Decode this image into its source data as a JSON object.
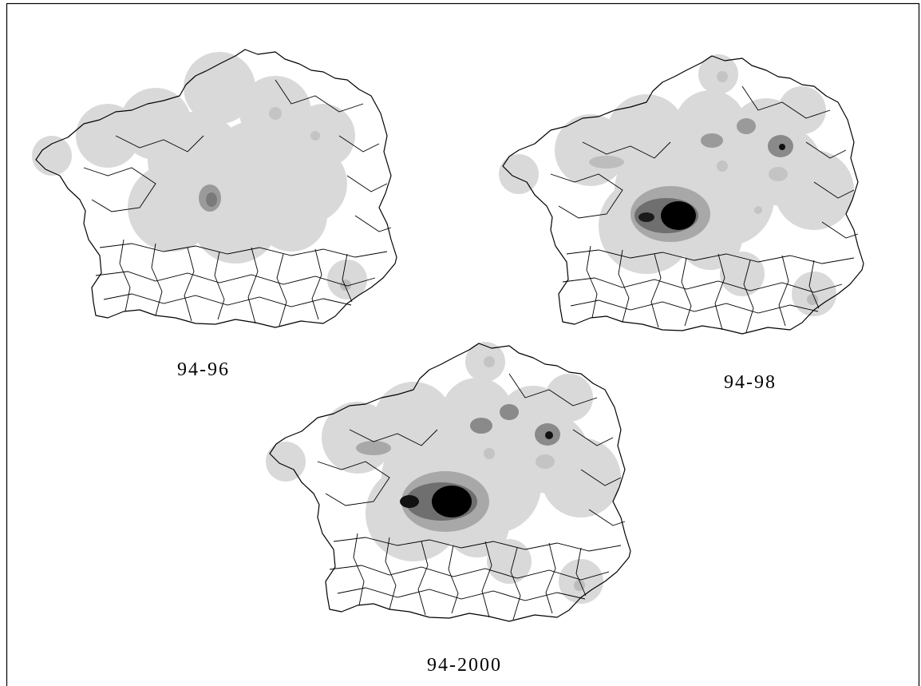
{
  "panels": [
    {
      "label": "94-96"
    },
    {
      "label": "94-98"
    },
    {
      "label": "94-2000"
    }
  ]
}
